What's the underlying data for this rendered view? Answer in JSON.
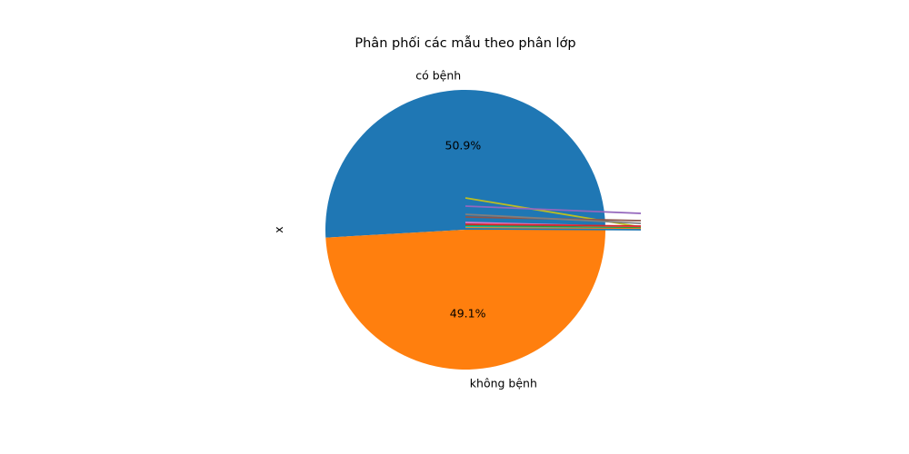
{
  "chart_data": {
    "type": "pie",
    "title": "Phân phối các mẫu theo phân lớp",
    "ylabel": "x",
    "autopct_format": "%.1f%%",
    "start_angle_deg": 0,
    "direction": "counterclockwise",
    "slices": [
      {
        "label": "có bệnh",
        "percent_label": "50.9%",
        "value": 50.9,
        "color": "#1f77b4"
      },
      {
        "label": "không bệnh",
        "percent_label": "49.1%",
        "value": 49.1,
        "color": "#ff7f0e"
      }
    ],
    "overlay_series": [
      {
        "color": "#bcbd22",
        "values": [
          35,
          3
        ]
      },
      {
        "color": "#9467bd",
        "values": [
          26,
          18
        ]
      },
      {
        "color": "#8c564b",
        "values": [
          14,
          10
        ]
      },
      {
        "color": "#7f7f7f",
        "values": [
          17,
          7
        ]
      },
      {
        "color": "#e377c2",
        "values": [
          8,
          3
        ]
      },
      {
        "color": "#d62728",
        "values": [
          6,
          4
        ]
      },
      {
        "color": "#2ca02c",
        "values": [
          4,
          2
        ]
      },
      {
        "color": "#17becf",
        "values": [
          3,
          1
        ]
      },
      {
        "color": "#ff7f0e",
        "values": [
          2,
          1
        ]
      },
      {
        "color": "#1f77b4",
        "values": [
          1,
          0
        ]
      }
    ]
  }
}
